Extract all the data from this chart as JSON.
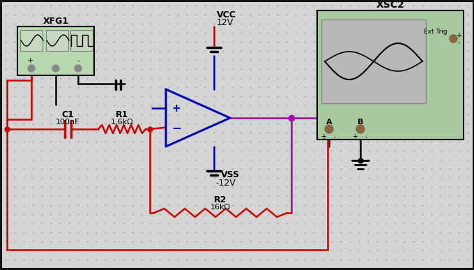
{
  "bg_color": "#d4d4d4",
  "dot_color": "#aaaaaa",
  "wire_red": "#cc0000",
  "wire_blue": "#0000bb",
  "wire_purple": "#aa00aa",
  "wire_black": "#000000",
  "op_amp_color": "#0000bb",
  "xfg_bg": "#b8d8b0",
  "xfg_border": "#000000",
  "osc_bg": "#a8c8a0",
  "osc_screen_bg": "#b8b8b8",
  "title_XFG1": "XFG1",
  "title_XSC2": "XSC2",
  "label_VCC": "VCC",
  "label_VCC_val": "12V",
  "label_VSS": "VSS",
  "label_VSS_val": "-12V",
  "label_C1": "C1",
  "label_C1_val": "100nF",
  "label_R1": "R1",
  "label_R1_val": "1.6kΩ",
  "label_R2": "R2",
  "label_R2_val": "16kΩ",
  "label_A": "A",
  "label_B": "B",
  "label_ExtTrig": "Ext Trig",
  "figsize": [
    6.8,
    3.87
  ],
  "dpi": 100
}
